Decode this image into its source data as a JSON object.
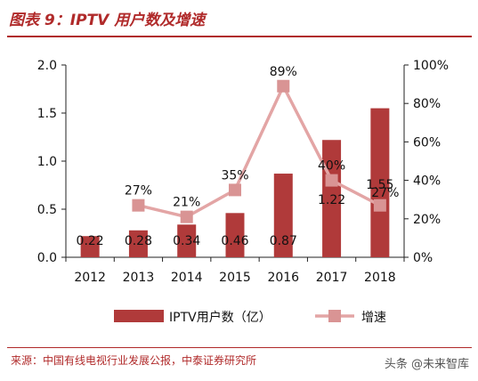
{
  "title": "图表 9：IPTV 用户数及增速",
  "source": "来源：中国有线电视行业发展公报，中泰证券研究所",
  "watermark": "头条 @未来智库",
  "colors": {
    "bar": "#b03a3a",
    "line": "#e3a5a5",
    "marker": "#d99494",
    "accent": "#b02a2a"
  },
  "chart_data": {
    "type": "bar+line",
    "categories": [
      "2012",
      "2013",
      "2014",
      "2015",
      "2016",
      "2017",
      "2018"
    ],
    "series": [
      {
        "name": "IPTV用户数（亿）",
        "type": "bar",
        "axis": "left",
        "values": [
          0.22,
          0.28,
          0.34,
          0.46,
          0.87,
          1.22,
          1.55
        ],
        "labels": [
          "0.22",
          "0.28",
          "0.34",
          "0.46",
          "0.87",
          "1.22",
          "1.55"
        ]
      },
      {
        "name": "增速",
        "type": "line",
        "axis": "right",
        "values": [
          null,
          27,
          21,
          35,
          89,
          40,
          27
        ],
        "labels": [
          "",
          "27%",
          "21%",
          "35%",
          "89%",
          "40%",
          "27%"
        ]
      }
    ],
    "y_left": {
      "min": 0,
      "max": 2.0,
      "ticks": [
        "0.0",
        "0.5",
        "1.0",
        "1.5",
        "2.0"
      ]
    },
    "y_right": {
      "min": 0,
      "max": 100,
      "ticks": [
        "0%",
        "20%",
        "40%",
        "60%",
        "80%",
        "100%"
      ]
    },
    "grid": false,
    "legend": "bottom"
  }
}
